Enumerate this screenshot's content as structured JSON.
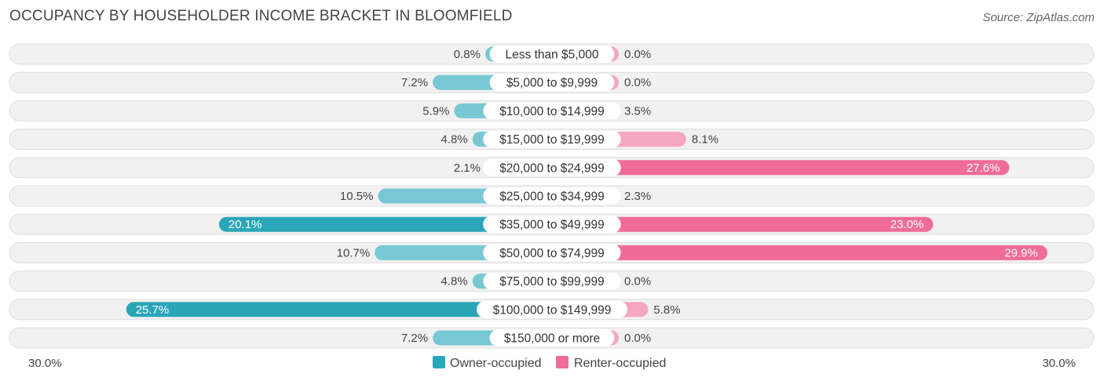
{
  "title": "OCCUPANCY BY HOUSEHOLDER INCOME BRACKET IN BLOOMFIELD",
  "source": "Source: ZipAtlas.com",
  "colors": {
    "owner_strong": "#2ba6b8",
    "owner_light": "#77c8d2",
    "renter_strong": "#f06b98",
    "renter_light": "#f6a6c1",
    "row_bg": "#f1f1f1",
    "row_border": "#dddddd"
  },
  "chart_data": {
    "type": "bar",
    "orientation": "diverging-horizontal",
    "categories": [
      "Less than $5,000",
      "$5,000 to $9,999",
      "$10,000 to $14,999",
      "$15,000 to $19,999",
      "$20,000 to $24,999",
      "$25,000 to $34,999",
      "$35,000 to $49,999",
      "$50,000 to $74,999",
      "$75,000 to $99,999",
      "$100,000 to $149,999",
      "$150,000 or more"
    ],
    "series": [
      {
        "name": "Owner-occupied",
        "values": [
          0.8,
          7.2,
          5.9,
          4.8,
          2.1,
          10.5,
          20.1,
          10.7,
          4.8,
          25.7,
          7.2
        ],
        "labels": [
          "0.8%",
          "7.2%",
          "5.9%",
          "4.8%",
          "2.1%",
          "10.5%",
          "20.1%",
          "10.7%",
          "4.8%",
          "25.7%",
          "7.2%"
        ]
      },
      {
        "name": "Renter-occupied",
        "values": [
          0.0,
          0.0,
          3.5,
          8.1,
          27.6,
          2.3,
          23.0,
          29.9,
          0.0,
          5.8,
          0.0
        ],
        "labels": [
          "0.0%",
          "0.0%",
          "3.5%",
          "8.1%",
          "27.6%",
          "2.3%",
          "23.0%",
          "29.9%",
          "0.0%",
          "5.8%",
          "0.0%"
        ]
      }
    ],
    "axis_max": 30.0,
    "axis_left_label": "30.0%",
    "axis_right_label": "30.0%",
    "legend_position": "bottom-center"
  }
}
